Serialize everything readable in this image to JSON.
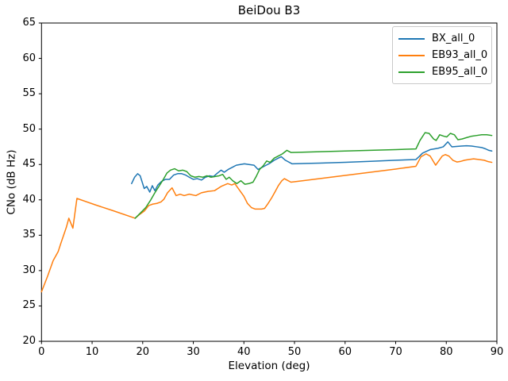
{
  "chart_data": {
    "type": "line",
    "title": "BeiDou B3",
    "xlabel": "Elevation (deg)",
    "ylabel": "CNo (dB Hz)",
    "xlim": [
      0,
      90
    ],
    "ylim": [
      20,
      65
    ],
    "xticks": [
      0,
      10,
      20,
      30,
      40,
      50,
      60,
      70,
      80,
      90
    ],
    "yticks": [
      20,
      25,
      30,
      35,
      40,
      45,
      50,
      55,
      60,
      65
    ],
    "grid": false,
    "legend_position": "upper right",
    "series": [
      {
        "name": "BX_all_0",
        "color": "#1f77b4",
        "points": [
          [
            17.8,
            42.3
          ],
          [
            18.4,
            43.2
          ],
          [
            19.0,
            43.7
          ],
          [
            19.5,
            43.4
          ],
          [
            20.3,
            41.6
          ],
          [
            20.8,
            41.9
          ],
          [
            21.4,
            41.1
          ],
          [
            21.9,
            42.0
          ],
          [
            22.4,
            41.3
          ],
          [
            23.0,
            42.1
          ],
          [
            23.7,
            42.6
          ],
          [
            24.5,
            42.9
          ],
          [
            25.3,
            42.9
          ],
          [
            26.1,
            43.5
          ],
          [
            26.9,
            43.7
          ],
          [
            27.7,
            43.7
          ],
          [
            28.5,
            43.5
          ],
          [
            29.2,
            43.2
          ],
          [
            30.0,
            42.9
          ],
          [
            30.8,
            43.0
          ],
          [
            31.6,
            42.8
          ],
          [
            32.4,
            43.2
          ],
          [
            33.2,
            43.4
          ],
          [
            34.0,
            43.3
          ],
          [
            34.8,
            43.8
          ],
          [
            35.5,
            44.2
          ],
          [
            36.1,
            43.9
          ],
          [
            36.9,
            44.3
          ],
          [
            37.7,
            44.6
          ],
          [
            38.5,
            44.9
          ],
          [
            39.3,
            45.0
          ],
          [
            40.1,
            45.1
          ],
          [
            41.0,
            45.0
          ],
          [
            42.0,
            44.9
          ],
          [
            42.8,
            44.3
          ],
          [
            43.6,
            44.6
          ],
          [
            44.4,
            44.9
          ],
          [
            45.2,
            45.2
          ],
          [
            46.0,
            45.6
          ],
          [
            46.8,
            45.9
          ],
          [
            47.4,
            46.1
          ],
          [
            48.2,
            45.6
          ],
          [
            49.5,
            45.1
          ],
          [
            55,
            45.2
          ],
          [
            60,
            45.3
          ],
          [
            65,
            45.45
          ],
          [
            70,
            45.6
          ],
          [
            74,
            45.7
          ],
          [
            74.6,
            46.1
          ],
          [
            75.3,
            46.6
          ],
          [
            76.8,
            47.1
          ],
          [
            78.4,
            47.3
          ],
          [
            79.4,
            47.5
          ],
          [
            80.3,
            48.2
          ],
          [
            81.1,
            47.5
          ],
          [
            82.0,
            47.55
          ],
          [
            83.0,
            47.6
          ],
          [
            84.0,
            47.65
          ],
          [
            85.0,
            47.6
          ],
          [
            86.0,
            47.5
          ],
          [
            87.0,
            47.4
          ],
          [
            87.8,
            47.2
          ],
          [
            88.4,
            47.0
          ],
          [
            89.0,
            46.9
          ]
        ]
      },
      {
        "name": "EB93_all_0",
        "color": "#ff7f0e",
        "points": [
          [
            0,
            27.0
          ],
          [
            1.2,
            29.2
          ],
          [
            2.3,
            31.4
          ],
          [
            3.3,
            32.7
          ],
          [
            3.8,
            33.8
          ],
          [
            4.9,
            36.1
          ],
          [
            5.4,
            37.4
          ],
          [
            6.2,
            36.0
          ],
          [
            7.0,
            40.2
          ],
          [
            10.6,
            39.3
          ],
          [
            14,
            38.5
          ],
          [
            18.5,
            37.4
          ],
          [
            19.5,
            38.0
          ],
          [
            20.3,
            38.4
          ],
          [
            21.2,
            39.2
          ],
          [
            22.0,
            39.4
          ],
          [
            22.8,
            39.5
          ],
          [
            23.6,
            39.7
          ],
          [
            24.2,
            40.1
          ],
          [
            24.9,
            41.0
          ],
          [
            25.8,
            41.7
          ],
          [
            26.6,
            40.6
          ],
          [
            27.4,
            40.8
          ],
          [
            28.2,
            40.6
          ],
          [
            29.2,
            40.8
          ],
          [
            30.5,
            40.6
          ],
          [
            31.6,
            41.0
          ],
          [
            32.9,
            41.2
          ],
          [
            34.2,
            41.3
          ],
          [
            35.5,
            41.9
          ],
          [
            36.8,
            42.3
          ],
          [
            37.6,
            42.1
          ],
          [
            38.2,
            42.3
          ],
          [
            39.2,
            41.3
          ],
          [
            40.0,
            40.5
          ],
          [
            40.7,
            39.5
          ],
          [
            41.5,
            38.9
          ],
          [
            42.2,
            38.7
          ],
          [
            43.5,
            38.7
          ],
          [
            44.1,
            38.8
          ],
          [
            44.7,
            39.4
          ],
          [
            45.5,
            40.3
          ],
          [
            46.2,
            41.2
          ],
          [
            46.8,
            42.0
          ],
          [
            47.5,
            42.7
          ],
          [
            48.0,
            43.0
          ],
          [
            48.5,
            42.8
          ],
          [
            49.3,
            42.5
          ],
          [
            55,
            43.0
          ],
          [
            60,
            43.45
          ],
          [
            65,
            43.9
          ],
          [
            70,
            44.35
          ],
          [
            74,
            44.75
          ],
          [
            75.0,
            46.1
          ],
          [
            76.0,
            46.5
          ],
          [
            76.8,
            46.2
          ],
          [
            77.9,
            44.9
          ],
          [
            79.2,
            46.2
          ],
          [
            79.8,
            46.4
          ],
          [
            80.5,
            46.2
          ],
          [
            81.3,
            45.6
          ],
          [
            82.1,
            45.35
          ],
          [
            82.9,
            45.45
          ],
          [
            83.6,
            45.6
          ],
          [
            84.4,
            45.7
          ],
          [
            85.4,
            45.8
          ],
          [
            86.5,
            45.7
          ],
          [
            87.5,
            45.6
          ],
          [
            88.3,
            45.4
          ],
          [
            89.0,
            45.3
          ]
        ]
      },
      {
        "name": "EB95_all_0",
        "color": "#2ca02c",
        "points": [
          [
            18.5,
            37.4
          ],
          [
            19.5,
            38.1
          ],
          [
            20.6,
            38.9
          ],
          [
            21.6,
            40.0
          ],
          [
            22.4,
            41.0
          ],
          [
            23.2,
            41.9
          ],
          [
            24.0,
            42.8
          ],
          [
            24.8,
            43.8
          ],
          [
            25.5,
            44.2
          ],
          [
            26.3,
            44.4
          ],
          [
            27.1,
            44.1
          ],
          [
            27.9,
            44.2
          ],
          [
            28.7,
            44.0
          ],
          [
            29.5,
            43.4
          ],
          [
            30.3,
            43.2
          ],
          [
            31.1,
            43.3
          ],
          [
            31.9,
            43.2
          ],
          [
            32.7,
            43.4
          ],
          [
            33.5,
            43.2
          ],
          [
            34.3,
            43.3
          ],
          [
            35.1,
            43.4
          ],
          [
            35.8,
            43.6
          ],
          [
            36.5,
            42.9
          ],
          [
            37.1,
            43.2
          ],
          [
            37.8,
            42.7
          ],
          [
            38.6,
            42.3
          ],
          [
            39.4,
            42.7
          ],
          [
            40.2,
            42.2
          ],
          [
            41.0,
            42.3
          ],
          [
            41.8,
            42.5
          ],
          [
            42.5,
            43.4
          ],
          [
            43.1,
            44.3
          ],
          [
            43.8,
            44.8
          ],
          [
            44.5,
            45.5
          ],
          [
            45.2,
            45.3
          ],
          [
            46.0,
            45.9
          ],
          [
            46.8,
            46.2
          ],
          [
            47.6,
            46.5
          ],
          [
            48.5,
            47.0
          ],
          [
            49.3,
            46.7
          ],
          [
            55,
            46.8
          ],
          [
            60,
            46.9
          ],
          [
            65,
            47.0
          ],
          [
            70,
            47.1
          ],
          [
            74,
            47.2
          ],
          [
            74.8,
            48.4
          ],
          [
            75.8,
            49.5
          ],
          [
            76.6,
            49.4
          ],
          [
            77.5,
            48.6
          ],
          [
            78.0,
            48.4
          ],
          [
            78.7,
            49.2
          ],
          [
            79.5,
            49.0
          ],
          [
            80.1,
            48.9
          ],
          [
            80.8,
            49.4
          ],
          [
            81.6,
            49.2
          ],
          [
            82.3,
            48.5
          ],
          [
            83.1,
            48.6
          ],
          [
            84.0,
            48.8
          ],
          [
            85.0,
            49.0
          ],
          [
            86.0,
            49.1
          ],
          [
            87.0,
            49.2
          ],
          [
            88.0,
            49.2
          ],
          [
            89.0,
            49.1
          ]
        ]
      }
    ]
  }
}
